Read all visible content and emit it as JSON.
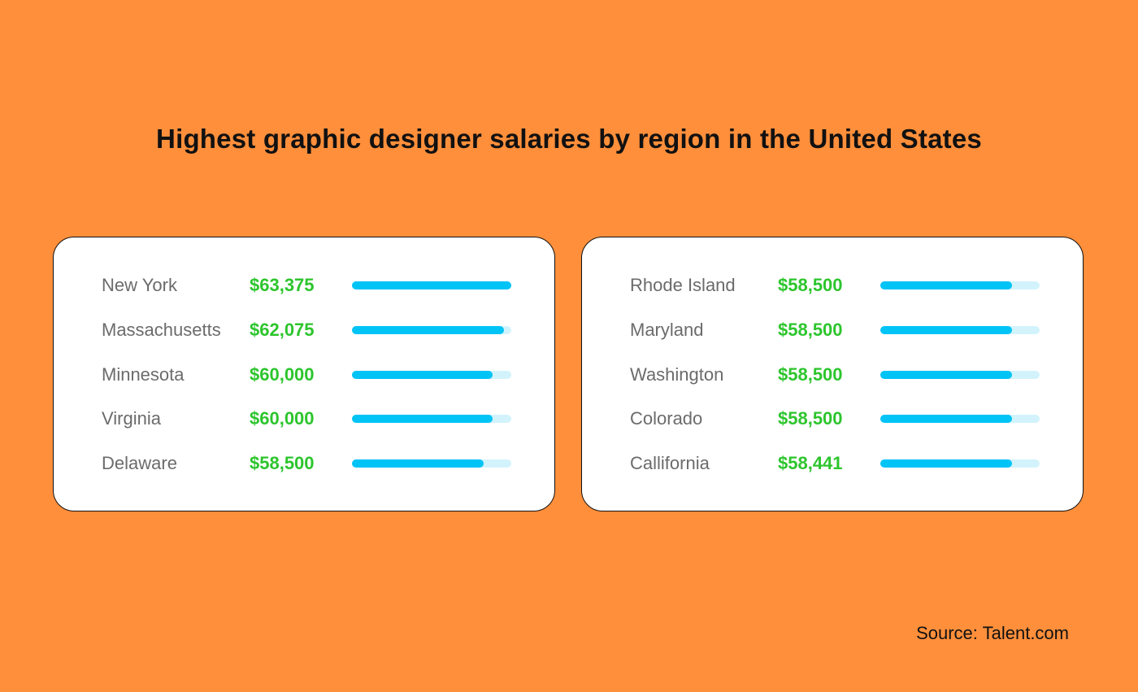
{
  "chart_data": {
    "type": "bar",
    "title": "Highest graphic designer salaries by region in the United States",
    "source": "Source: Talent.com",
    "max_value": 63375,
    "colors": {
      "background": "#FF8F3B",
      "bar": "#00C3F6",
      "track": "#D2F3FC",
      "value_text": "#2DC52D"
    },
    "panels": [
      {
        "rows": [
          {
            "category": "New York",
            "label": "$63,375",
            "value": 63375
          },
          {
            "category": "Massachusetts",
            "label": "$62,075",
            "value": 62075
          },
          {
            "category": "Minnesota",
            "label": "$60,000",
            "value": 60000
          },
          {
            "category": "Virginia",
            "label": "$60,000",
            "value": 60000
          },
          {
            "category": "Delaware",
            "label": "$58,500",
            "value": 58500
          }
        ]
      },
      {
        "rows": [
          {
            "category": "Rhode Island",
            "label": "$58,500",
            "value": 58500
          },
          {
            "category": "Maryland",
            "label": "$58,500",
            "value": 58500
          },
          {
            "category": "Washington",
            "label": "$58,500",
            "value": 58500
          },
          {
            "category": "Colorado",
            "label": "$58,500",
            "value": 58500
          },
          {
            "category": "Callifornia",
            "label": "$58,441",
            "value": 58441
          }
        ]
      }
    ]
  }
}
